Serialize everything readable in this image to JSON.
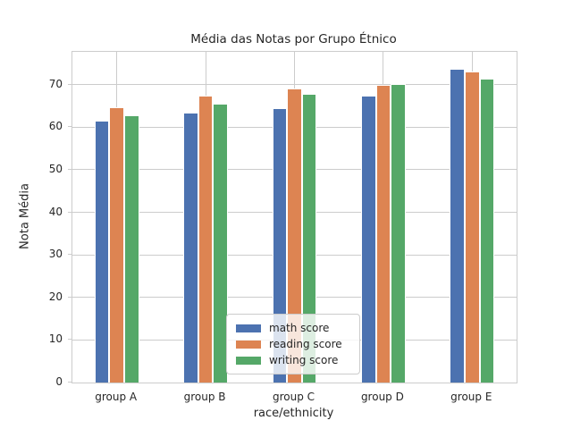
{
  "chart_data": {
    "type": "bar",
    "title": "Média das Notas por Grupo Étnico",
    "xlabel": "race/ethnicity",
    "ylabel": "Nota Média",
    "categories": [
      "group A",
      "group B",
      "group C",
      "group D",
      "group E"
    ],
    "series": [
      {
        "name": "math score",
        "color": "#4C72B0",
        "values": [
          61.6,
          63.4,
          64.5,
          67.4,
          73.8
        ]
      },
      {
        "name": "reading score",
        "color": "#DD8452",
        "values": [
          64.7,
          67.4,
          69.1,
          70.0,
          73.0
        ]
      },
      {
        "name": "writing score",
        "color": "#55A868",
        "values": [
          62.7,
          65.6,
          67.8,
          70.1,
          71.4
        ]
      }
    ],
    "yticks": [
      0,
      10,
      20,
      30,
      40,
      50,
      60,
      70
    ],
    "ylim": [
      0,
      77.7
    ],
    "grid": true,
    "legend_position": "lower center",
    "style": {
      "grid_color": "#cccccc",
      "text_color": "#262626",
      "background": "#ffffff"
    }
  }
}
